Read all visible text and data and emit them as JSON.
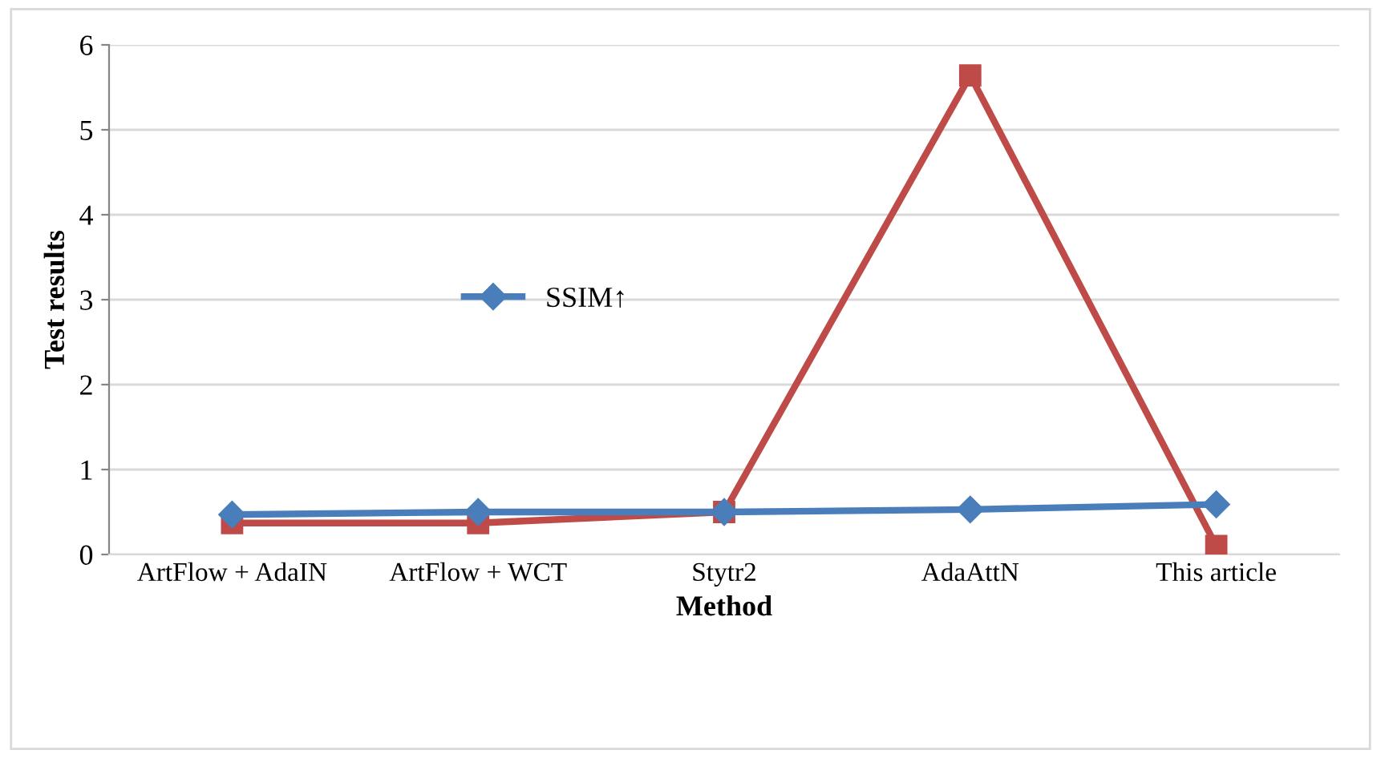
{
  "chart_data": {
    "type": "line",
    "xlabel": "Method",
    "ylabel": "Test results",
    "categories": [
      "ArtFlow + AdaIN",
      "ArtFlow + WCT",
      "Stytr2",
      "AdaAttN",
      "This article"
    ],
    "series": [
      {
        "name": "SSIM↑",
        "color": "#4a7ebb",
        "marker": "diamond",
        "values": [
          0.47,
          0.5,
          0.5,
          0.53,
          0.59
        ]
      },
      {
        "color": "#be4b48",
        "marker": "square",
        "values": [
          0.37,
          0.37,
          0.5,
          5.64,
          0.1
        ]
      }
    ],
    "ylim": [
      0,
      6
    ],
    "yticks": [
      0,
      1,
      2,
      3,
      4,
      5,
      6
    ],
    "grid": "y",
    "legend": "center",
    "line_style": "solid"
  }
}
